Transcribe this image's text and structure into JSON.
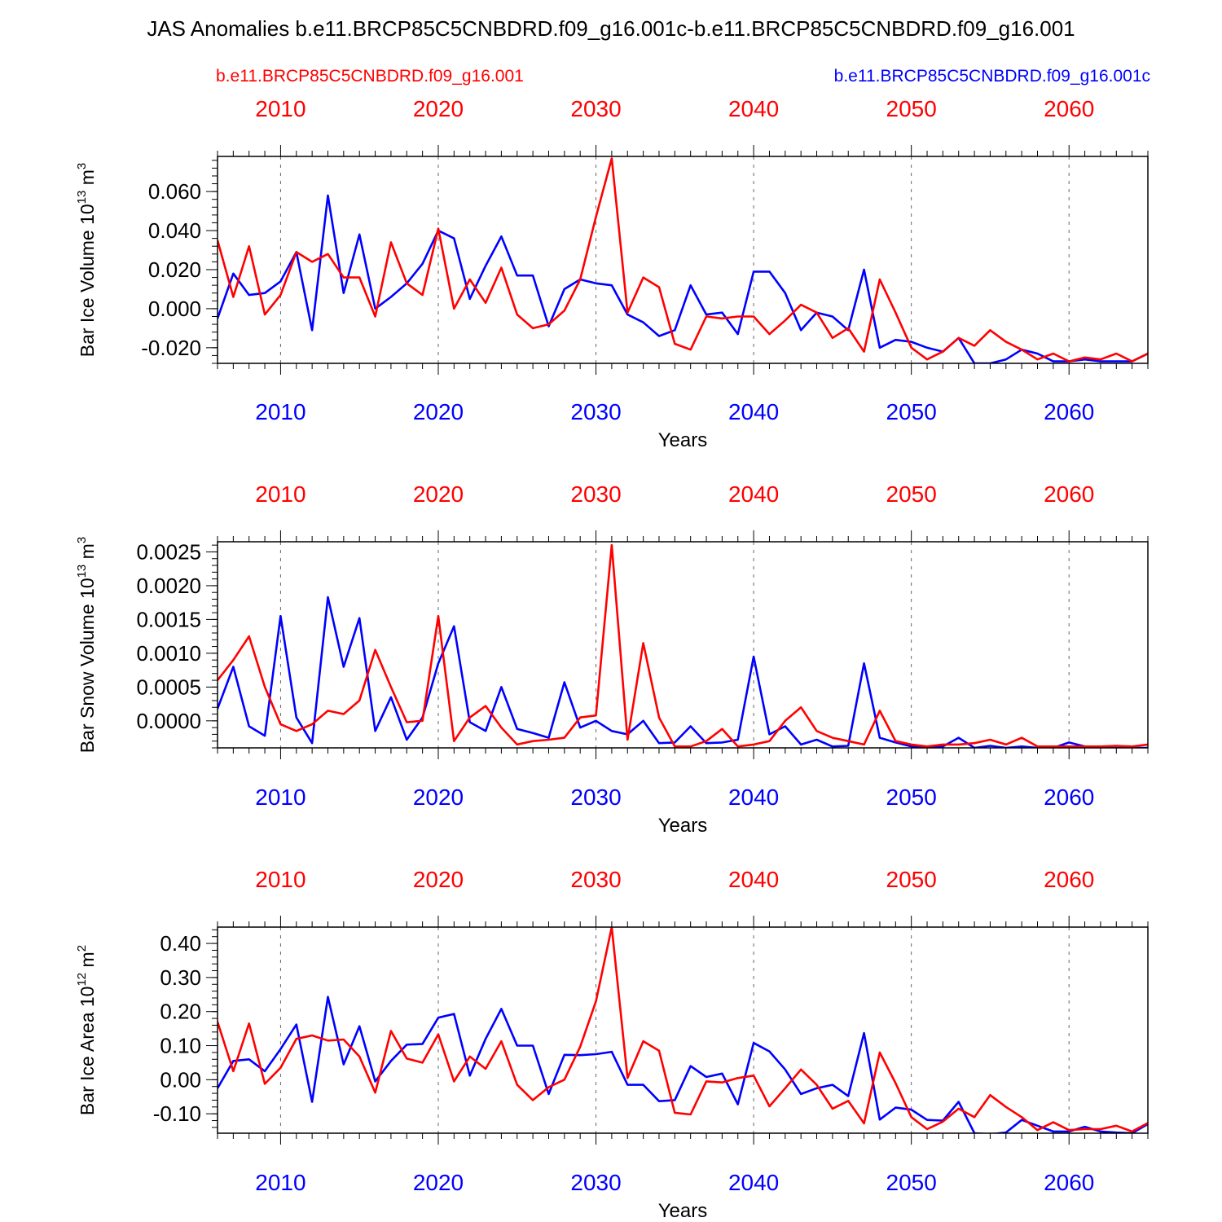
{
  "title": "JAS Anomalies b.e11.BRCP85C5CNBDRD.f09_g16.001c-b.e11.BRCP85C5CNBDRD.f09_g16.001",
  "legend": {
    "red_label": "b.e11.BRCP85C5CNBDRD.f09_g16.001",
    "blue_label": "b.e11.BRCP85C5CNBDRD.f09_g16.001c"
  },
  "colors": {
    "red": "#ff0000",
    "blue": "#0000ff",
    "axis": "#000000",
    "grid": "#666666"
  },
  "chart_data": [
    {
      "type": "line",
      "ylabel": "Bar Ice Volume 10",
      "ylabel_exp": "13",
      "ylabel_unit": " m",
      "ylabel_unit_exp": "3",
      "xlabel": "Years",
      "xlim": [
        2006,
        2065
      ],
      "ylim": [
        -0.028,
        0.078
      ],
      "xticks": [
        "2010",
        "2020",
        "2030",
        "2040",
        "2050",
        "2060"
      ],
      "yticks": [
        {
          "value": -0.02,
          "label": "-0.020"
        },
        {
          "value": 0.0,
          "label": "0.000"
        },
        {
          "value": 0.02,
          "label": "0.020"
        },
        {
          "value": 0.04,
          "label": "0.040"
        },
        {
          "value": 0.06,
          "label": "0.060"
        }
      ],
      "x": [
        2006,
        2007,
        2008,
        2009,
        2010,
        2011,
        2012,
        2013,
        2014,
        2015,
        2016,
        2017,
        2018,
        2019,
        2020,
        2021,
        2022,
        2023,
        2024,
        2025,
        2026,
        2027,
        2028,
        2029,
        2030,
        2031,
        2032,
        2033,
        2034,
        2035,
        2036,
        2037,
        2038,
        2039,
        2040,
        2041,
        2042,
        2043,
        2044,
        2045,
        2046,
        2047,
        2048,
        2049,
        2050,
        2051,
        2052,
        2053,
        2054,
        2055,
        2056,
        2057,
        2058,
        2059,
        2060,
        2061,
        2062,
        2063,
        2064,
        2065
      ],
      "series": [
        {
          "name": "b.e11.BRCP85C5CNBDRD.f09_g16.001",
          "color": "red",
          "values": [
            0.035,
            0.006,
            0.032,
            -0.003,
            0.007,
            0.029,
            0.024,
            0.028,
            0.016,
            0.016,
            -0.004,
            0.034,
            0.013,
            0.007,
            0.041,
            0.0,
            0.015,
            0.003,
            0.021,
            -0.003,
            -0.01,
            -0.008,
            -0.001,
            0.015,
            0.047,
            0.077,
            -0.002,
            0.016,
            0.011,
            -0.018,
            -0.021,
            -0.004,
            -0.005,
            -0.004,
            -0.004,
            -0.013,
            -0.006,
            0.002,
            -0.002,
            -0.015,
            -0.01,
            -0.022,
            0.015,
            -0.002,
            -0.02,
            -0.026,
            -0.022,
            -0.015,
            -0.019,
            -0.011,
            -0.017,
            -0.021,
            -0.026,
            -0.023,
            -0.027,
            -0.025,
            -0.026,
            -0.023,
            -0.027,
            -0.023
          ]
        },
        {
          "name": "b.e11.BRCP85C5CNBDRD.f09_g16.001c",
          "color": "blue",
          "values": [
            -0.005,
            0.018,
            0.007,
            0.008,
            0.014,
            0.029,
            -0.011,
            0.058,
            0.008,
            0.038,
            0.0,
            0.006,
            0.013,
            0.023,
            0.04,
            0.036,
            0.005,
            0.022,
            0.037,
            0.017,
            0.017,
            -0.009,
            0.01,
            0.015,
            0.013,
            0.012,
            -0.003,
            -0.007,
            -0.014,
            -0.011,
            0.012,
            -0.003,
            -0.002,
            -0.013,
            0.019,
            0.019,
            0.008,
            -0.011,
            -0.002,
            -0.004,
            -0.011,
            0.02,
            -0.02,
            -0.016,
            -0.017,
            -0.02,
            -0.022,
            -0.015,
            -0.028,
            -0.028,
            -0.026,
            -0.021,
            -0.023,
            -0.027,
            -0.027,
            -0.026,
            -0.027,
            -0.027,
            -0.027,
            -0.023
          ]
        }
      ]
    },
    {
      "type": "line",
      "ylabel": "Bar Snow Volume 10",
      "ylabel_exp": "13",
      "ylabel_unit": " m",
      "ylabel_unit_exp": "3",
      "xlabel": "Years",
      "xlim": [
        2006,
        2065
      ],
      "ylim": [
        -0.0004,
        0.00265
      ],
      "xticks": [
        "2010",
        "2020",
        "2030",
        "2040",
        "2050",
        "2060"
      ],
      "yticks": [
        {
          "value": 0.0,
          "label": "0.0000"
        },
        {
          "value": 0.0005,
          "label": "0.0005"
        },
        {
          "value": 0.001,
          "label": "0.0010"
        },
        {
          "value": 0.0015,
          "label": "0.0015"
        },
        {
          "value": 0.002,
          "label": "0.0020"
        },
        {
          "value": 0.0025,
          "label": "0.0025"
        }
      ],
      "x": [
        2006,
        2007,
        2008,
        2009,
        2010,
        2011,
        2012,
        2013,
        2014,
        2015,
        2016,
        2017,
        2018,
        2019,
        2020,
        2021,
        2022,
        2023,
        2024,
        2025,
        2026,
        2027,
        2028,
        2029,
        2030,
        2031,
        2032,
        2033,
        2034,
        2035,
        2036,
        2037,
        2038,
        2039,
        2040,
        2041,
        2042,
        2043,
        2044,
        2045,
        2046,
        2047,
        2048,
        2049,
        2050,
        2051,
        2052,
        2053,
        2054,
        2055,
        2056,
        2057,
        2058,
        2059,
        2060,
        2061,
        2062,
        2063,
        2064,
        2065
      ],
      "series": [
        {
          "name": "b.e11.BRCP85C5CNBDRD.f09_g16.001",
          "color": "red",
          "values": [
            0.0006,
            0.0009,
            0.00125,
            0.0005,
            -5e-05,
            -0.00015,
            -5e-05,
            0.00015,
            0.0001,
            0.0003,
            0.00105,
            0.0005,
            -2e-05,
            0.0,
            0.00155,
            -0.0003,
            5e-05,
            0.00022,
            -0.0001,
            -0.00035,
            -0.0003,
            -0.00028,
            -0.00025,
            5e-05,
            8e-05,
            0.0026,
            -0.00028,
            0.00115,
            5e-05,
            -0.00038,
            -0.00038,
            -0.0003,
            -0.00012,
            -0.00038,
            -0.00035,
            -0.0003,
            0.0,
            0.0002,
            -0.00015,
            -0.00025,
            -0.0003,
            -0.00035,
            0.00015,
            -0.0003,
            -0.00035,
            -0.00038,
            -0.00035,
            -0.00035,
            -0.00033,
            -0.00028,
            -0.00035,
            -0.00025,
            -0.00038,
            -0.00038,
            -0.00038,
            -0.00038,
            -0.00038,
            -0.00037,
            -0.00038,
            -0.00035
          ]
        },
        {
          "name": "b.e11.BRCP85C5CNBDRD.f09_g16.001c",
          "color": "blue",
          "values": [
            0.00018,
            0.0008,
            -8e-05,
            -0.00022,
            0.00155,
            5e-05,
            -0.00033,
            0.00183,
            0.0008,
            0.00152,
            -0.00015,
            0.00035,
            -0.00028,
            5e-05,
            0.00085,
            0.0014,
            -2e-05,
            -0.00015,
            0.0005,
            -0.00012,
            -0.00018,
            -0.00025,
            0.00057,
            -0.0001,
            0.0,
            -0.00015,
            -0.0002,
            0.0,
            -0.00033,
            -0.00032,
            -8e-05,
            -0.00033,
            -0.00032,
            -0.00028,
            0.00095,
            -0.0002,
            -8e-05,
            -0.00035,
            -0.00028,
            -0.00038,
            -0.00037,
            0.00085,
            -0.00025,
            -0.00032,
            -0.00038,
            -0.0004,
            -0.00038,
            -0.00025,
            -0.0004,
            -0.00037,
            -0.0004,
            -0.00038,
            -0.0004,
            -0.0004,
            -0.00032,
            -0.00038,
            -0.0004,
            -0.0004,
            -0.0004,
            -0.0004
          ]
        }
      ]
    },
    {
      "type": "line",
      "ylabel": "Bar Ice Area 10",
      "ylabel_exp": "12",
      "ylabel_unit": " m",
      "ylabel_unit_exp": "2",
      "xlabel": "Years",
      "xlim": [
        2006,
        2065
      ],
      "ylim": [
        -0.157,
        0.448
      ],
      "xticks": [
        "2010",
        "2020",
        "2030",
        "2040",
        "2050",
        "2060"
      ],
      "yticks": [
        {
          "value": -0.1,
          "label": "-0.10"
        },
        {
          "value": 0.0,
          "label": "0.00"
        },
        {
          "value": 0.1,
          "label": "0.10"
        },
        {
          "value": 0.2,
          "label": "0.20"
        },
        {
          "value": 0.3,
          "label": "0.30"
        },
        {
          "value": 0.4,
          "label": "0.40"
        }
      ],
      "x": [
        2006,
        2007,
        2008,
        2009,
        2010,
        2011,
        2012,
        2013,
        2014,
        2015,
        2016,
        2017,
        2018,
        2019,
        2020,
        2021,
        2022,
        2023,
        2024,
        2025,
        2026,
        2027,
        2028,
        2029,
        2030,
        2031,
        2032,
        2033,
        2034,
        2035,
        2036,
        2037,
        2038,
        2039,
        2040,
        2041,
        2042,
        2043,
        2044,
        2045,
        2046,
        2047,
        2048,
        2049,
        2050,
        2051,
        2052,
        2053,
        2054,
        2055,
        2056,
        2057,
        2058,
        2059,
        2060,
        2061,
        2062,
        2063,
        2064,
        2065
      ],
      "series": [
        {
          "name": "b.e11.BRCP85C5CNBDRD.f09_g16.001",
          "color": "red",
          "values": [
            0.17,
            0.025,
            0.165,
            -0.012,
            0.035,
            0.12,
            0.13,
            0.115,
            0.118,
            0.068,
            -0.038,
            0.143,
            0.062,
            0.05,
            0.133,
            -0.005,
            0.068,
            0.032,
            0.113,
            -0.015,
            -0.06,
            -0.022,
            0.0,
            0.097,
            0.23,
            0.448,
            0.005,
            0.113,
            0.085,
            -0.097,
            -0.102,
            -0.005,
            -0.008,
            0.005,
            0.012,
            -0.078,
            -0.025,
            0.03,
            -0.015,
            -0.085,
            -0.062,
            -0.128,
            0.08,
            -0.01,
            -0.11,
            -0.145,
            -0.123,
            -0.085,
            -0.11,
            -0.045,
            -0.08,
            -0.11,
            -0.148,
            -0.125,
            -0.148,
            -0.145,
            -0.145,
            -0.135,
            -0.152,
            -0.127
          ]
        },
        {
          "name": "b.e11.BRCP85C5CNBDRD.f09_g16.001c",
          "color": "blue",
          "values": [
            -0.025,
            0.055,
            0.06,
            0.025,
            0.09,
            0.162,
            -0.065,
            0.243,
            0.045,
            0.157,
            -0.005,
            0.055,
            0.103,
            0.105,
            0.182,
            0.193,
            0.012,
            0.12,
            0.208,
            0.1,
            0.1,
            -0.042,
            0.073,
            0.072,
            0.075,
            0.082,
            -0.015,
            -0.015,
            -0.063,
            -0.06,
            0.04,
            0.008,
            0.018,
            -0.072,
            0.108,
            0.083,
            0.03,
            -0.042,
            -0.025,
            -0.015,
            -0.048,
            0.137,
            -0.117,
            -0.082,
            -0.088,
            -0.118,
            -0.12,
            -0.065,
            -0.157,
            -0.16,
            -0.155,
            -0.118,
            -0.135,
            -0.152,
            -0.152,
            -0.138,
            -0.152,
            -0.155,
            -0.157,
            -0.13
          ]
        }
      ]
    }
  ]
}
